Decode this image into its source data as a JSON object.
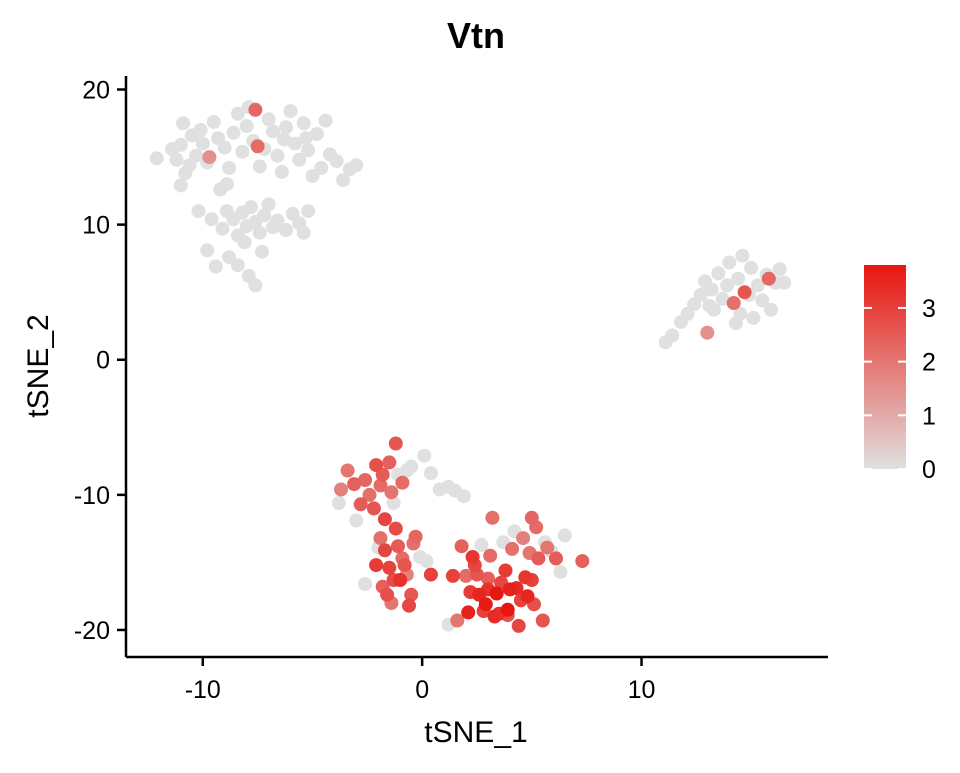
{
  "chart_data": {
    "type": "scatter",
    "title": "Vtn",
    "xlabel": "tSNE_1",
    "ylabel": "tSNE_2",
    "xlim": [
      -13.5,
      18.5
    ],
    "ylim": [
      -22,
      21
    ],
    "xticks": [
      -10,
      0,
      10
    ],
    "yticks": [
      -20,
      -10,
      0,
      10,
      20
    ],
    "xtick_labels": [
      "-10",
      "0",
      "10"
    ],
    "ytick_labels": [
      "-20",
      "-10",
      "0",
      "10",
      "20"
    ],
    "grid": false,
    "legend": {
      "position": "right",
      "type": "colorbar",
      "min": 0,
      "max": 3.8,
      "ticks": [
        0,
        1,
        2,
        3
      ],
      "tick_labels": [
        "0",
        "1",
        "2",
        "3"
      ],
      "color_low": "#E0E0E0",
      "color_high": "#E8160F"
    },
    "points": [
      [
        -12.1,
        14.9,
        0
      ],
      [
        -11.4,
        15.6,
        0
      ],
      [
        -11.2,
        14.8,
        0
      ],
      [
        -11.0,
        15.9,
        0
      ],
      [
        -10.9,
        17.5,
        0
      ],
      [
        -10.8,
        13.8,
        0
      ],
      [
        -10.6,
        14.4,
        0
      ],
      [
        -10.5,
        16.6,
        0
      ],
      [
        -10.3,
        15.1,
        0
      ],
      [
        -10.1,
        17.0,
        0
      ],
      [
        -10.0,
        16.0,
        0
      ],
      [
        -9.8,
        14.6,
        0
      ],
      [
        -9.7,
        15.0,
        1.5
      ],
      [
        -9.5,
        17.6,
        0
      ],
      [
        -9.3,
        16.4,
        0
      ],
      [
        -9.0,
        15.7,
        0
      ],
      [
        -8.8,
        14.2,
        0
      ],
      [
        -8.6,
        16.8,
        0
      ],
      [
        -8.4,
        18.2,
        0
      ],
      [
        -8.2,
        15.4,
        0
      ],
      [
        -8.0,
        17.3,
        0
      ],
      [
        -7.9,
        18.7,
        0
      ],
      [
        -7.7,
        16.2,
        0
      ],
      [
        -7.6,
        18.5,
        2.3
      ],
      [
        -7.4,
        14.3,
        0
      ],
      [
        -7.2,
        15.6,
        0
      ],
      [
        -7.0,
        17.8,
        0
      ],
      [
        -6.8,
        16.9,
        0
      ],
      [
        -6.6,
        15.1,
        0
      ],
      [
        -6.4,
        13.9,
        0
      ],
      [
        -6.2,
        17.2,
        0
      ],
      [
        -6.0,
        18.4,
        0
      ],
      [
        -5.8,
        16.0,
        0
      ],
      [
        -5.6,
        14.8,
        0
      ],
      [
        -5.4,
        17.5,
        0
      ],
      [
        -5.2,
        15.5,
        0
      ],
      [
        -5.0,
        13.6,
        0
      ],
      [
        -4.8,
        16.7,
        0
      ],
      [
        -4.6,
        14.2,
        0
      ],
      [
        -4.4,
        17.7,
        0
      ],
      [
        -4.2,
        15.2,
        0
      ],
      [
        -3.9,
        14.7,
        0
      ],
      [
        -3.6,
        13.3,
        0
      ],
      [
        -3.3,
        14.1,
        0
      ],
      [
        -3.0,
        14.4,
        0
      ],
      [
        -7.5,
        15.8,
        2.2
      ],
      [
        -6.3,
        16.3,
        0
      ],
      [
        -5.3,
        16.4,
        0
      ],
      [
        -8.9,
        13.0,
        0
      ],
      [
        -9.2,
        12.6,
        0
      ],
      [
        -11.0,
        12.9,
        0
      ],
      [
        -10.2,
        11.0,
        0
      ],
      [
        -9.6,
        10.4,
        0
      ],
      [
        -9.1,
        9.7,
        0
      ],
      [
        -8.9,
        11.0,
        0
      ],
      [
        -8.6,
        10.4,
        0
      ],
      [
        -8.4,
        9.2,
        0
      ],
      [
        -8.2,
        10.9,
        0
      ],
      [
        -8.0,
        9.9,
        0
      ],
      [
        -7.8,
        11.3,
        0
      ],
      [
        -7.6,
        10.2,
        0
      ],
      [
        -7.4,
        9.4,
        0
      ],
      [
        -7.2,
        10.7,
        0
      ],
      [
        -7.0,
        11.5,
        0
      ],
      [
        -6.8,
        9.8,
        0
      ],
      [
        -6.6,
        10.3,
        0
      ],
      [
        -6.2,
        9.6,
        0
      ],
      [
        -5.9,
        10.8,
        0
      ],
      [
        -5.6,
        10.1,
        0
      ],
      [
        -5.4,
        9.4,
        0
      ],
      [
        -5.2,
        11.0,
        0
      ],
      [
        -9.8,
        8.1,
        0
      ],
      [
        -9.4,
        6.9,
        0
      ],
      [
        -8.8,
        7.6,
        0
      ],
      [
        -8.4,
        7.0,
        0
      ],
      [
        -7.9,
        6.2,
        0
      ],
      [
        -7.6,
        5.5,
        0
      ],
      [
        -8.1,
        8.7,
        0
      ],
      [
        -7.3,
        8.0,
        0
      ],
      [
        11.1,
        1.3,
        0
      ],
      [
        11.4,
        1.8,
        0
      ],
      [
        11.8,
        2.8,
        0
      ],
      [
        12.1,
        3.4,
        0
      ],
      [
        12.4,
        4.1,
        0
      ],
      [
        12.7,
        4.8,
        0
      ],
      [
        12.9,
        5.8,
        0
      ],
      [
        13.0,
        2.0,
        1.5
      ],
      [
        13.2,
        5.2,
        0
      ],
      [
        13.3,
        3.7,
        0
      ],
      [
        13.5,
        6.4,
        0
      ],
      [
        13.7,
        4.5,
        0
      ],
      [
        13.9,
        5.5,
        0
      ],
      [
        14.0,
        7.2,
        0
      ],
      [
        14.2,
        4.2,
        2.1
      ],
      [
        14.4,
        6.0,
        0
      ],
      [
        14.5,
        3.4,
        0
      ],
      [
        14.7,
        5.0,
        2.6
      ],
      [
        14.9,
        4.8,
        0
      ],
      [
        15.0,
        6.8,
        0
      ],
      [
        15.1,
        3.1,
        0
      ],
      [
        15.3,
        5.5,
        0
      ],
      [
        15.5,
        4.4,
        0
      ],
      [
        15.7,
        6.3,
        0
      ],
      [
        15.9,
        3.7,
        0
      ],
      [
        16.1,
        5.7,
        0
      ],
      [
        16.3,
        6.7,
        0
      ],
      [
        16.5,
        5.7,
        0
      ],
      [
        15.8,
        6.0,
        2.3
      ],
      [
        14.6,
        7.7,
        0
      ],
      [
        13.1,
        4.0,
        0
      ],
      [
        14.3,
        2.7,
        0
      ],
      [
        -3.8,
        -10.6,
        0
      ],
      [
        -3.7,
        -9.6,
        1.8
      ],
      [
        -3.4,
        -8.2,
        2.0
      ],
      [
        -3.1,
        -9.2,
        2.4
      ],
      [
        -3.0,
        -11.9,
        0
      ],
      [
        -2.8,
        -10.7,
        2.5
      ],
      [
        -2.6,
        -8.9,
        2.3
      ],
      [
        -2.4,
        -10.0,
        2.1
      ],
      [
        -2.2,
        -11.0,
        2.6
      ],
      [
        -2.1,
        -7.8,
        2.7
      ],
      [
        -1.9,
        -9.3,
        2.2
      ],
      [
        -1.8,
        -8.5,
        2.5
      ],
      [
        -1.7,
        -11.8,
        2.9
      ],
      [
        -1.5,
        -7.6,
        2.4
      ],
      [
        -1.4,
        -9.8,
        2.0
      ],
      [
        -1.3,
        -10.6,
        0
      ],
      [
        -1.2,
        -6.2,
        2.6
      ],
      [
        -1.1,
        -8.5,
        0
      ],
      [
        -0.9,
        -9.1,
        2.2
      ],
      [
        -0.7,
        -8.2,
        0
      ],
      [
        -0.5,
        -7.9,
        0
      ],
      [
        -1.9,
        -13.2,
        2.1
      ],
      [
        -1.7,
        -14.1,
        2.9
      ],
      [
        -1.5,
        -15.4,
        3.0
      ],
      [
        -1.3,
        -16.3,
        2.8
      ],
      [
        -1.1,
        -13.8,
        2.5
      ],
      [
        -0.9,
        -14.7,
        2.2
      ],
      [
        -0.7,
        -15.9,
        1.8
      ],
      [
        -0.5,
        -17.4,
        2.6
      ],
      [
        -1.8,
        -16.8,
        2.4
      ],
      [
        -2.1,
        -15.2,
        3.1
      ],
      [
        -1.2,
        -12.5,
        2.8
      ],
      [
        -0.3,
        -13.1,
        2.3
      ],
      [
        -0.1,
        -14.6,
        0
      ],
      [
        0.2,
        -14.9,
        0
      ],
      [
        0.4,
        -15.9,
        3.0
      ],
      [
        -2.6,
        -16.6,
        0
      ],
      [
        -1.6,
        -17.4,
        2.7
      ],
      [
        -1.4,
        -18.0,
        2.0
      ],
      [
        -0.6,
        -18.2,
        2.9
      ],
      [
        -1.0,
        -16.3,
        3.3
      ],
      [
        -2.0,
        -13.9,
        0
      ],
      [
        -0.8,
        -15.2,
        2.6
      ],
      [
        -0.4,
        -13.6,
        2.1
      ],
      [
        0.1,
        -7.1,
        0
      ],
      [
        0.4,
        -8.4,
        0
      ],
      [
        0.8,
        -9.6,
        0
      ],
      [
        1.2,
        -9.4,
        0
      ],
      [
        1.5,
        -9.7,
        0
      ],
      [
        1.9,
        -10.1,
        0
      ],
      [
        1.8,
        -13.8,
        2.4
      ],
      [
        2.0,
        -16.0,
        2.2
      ],
      [
        2.3,
        -14.6,
        3.2
      ],
      [
        2.5,
        -15.9,
        2.6
      ],
      [
        2.6,
        -17.4,
        3.5
      ],
      [
        2.8,
        -18.6,
        3.0
      ],
      [
        3.0,
        -16.2,
        2.4
      ],
      [
        3.1,
        -14.5,
        2.2
      ],
      [
        3.2,
        -11.7,
        2.1
      ],
      [
        3.4,
        -17.3,
        3.8
      ],
      [
        3.5,
        -18.8,
        3.3
      ],
      [
        3.6,
        -16.5,
        2.9
      ],
      [
        3.8,
        -15.6,
        3.1
      ],
      [
        3.9,
        -18.9,
        2.7
      ],
      [
        4.0,
        -17.0,
        3.6
      ],
      [
        4.1,
        -14.0,
        2.1
      ],
      [
        4.3,
        -16.9,
        3.4
      ],
      [
        4.4,
        -19.7,
        2.9
      ],
      [
        4.5,
        -17.8,
        3.0
      ],
      [
        4.7,
        -16.1,
        3.2
      ],
      [
        4.9,
        -14.3,
        2.0
      ],
      [
        5.0,
        -11.7,
        2.3
      ],
      [
        5.1,
        -18.1,
        2.7
      ],
      [
        5.2,
        -12.4,
        2.2
      ],
      [
        5.3,
        -14.7,
        2.5
      ],
      [
        5.5,
        -19.3,
        2.6
      ],
      [
        5.7,
        -13.9,
        2.0
      ],
      [
        5.9,
        -14.2,
        0
      ],
      [
        6.1,
        -14.7,
        2.5
      ],
      [
        6.3,
        -15.7,
        0
      ],
      [
        6.5,
        -13.0,
        0
      ],
      [
        7.3,
        -14.9,
        2.4
      ],
      [
        1.2,
        -19.6,
        0
      ],
      [
        1.6,
        -19.3,
        2.0
      ],
      [
        2.1,
        -18.7,
        3.6
      ],
      [
        2.9,
        -18.1,
        3.7
      ],
      [
        3.3,
        -19.0,
        3.4
      ],
      [
        4.2,
        -12.7,
        0
      ],
      [
        3.7,
        -13.5,
        0
      ],
      [
        2.7,
        -13.7,
        0
      ],
      [
        1.4,
        -16.0,
        3.0
      ],
      [
        2.2,
        -17.2,
        3.1
      ],
      [
        4.6,
        -13.2,
        1.8
      ],
      [
        5.6,
        -13.5,
        0
      ],
      [
        2.4,
        -15.2,
        2.9
      ],
      [
        4.8,
        -17.5,
        3.5
      ],
      [
        3.9,
        -18.5,
        3.8
      ],
      [
        3.0,
        -17.0,
        3.3
      ],
      [
        5.0,
        -16.3,
        3.0
      ]
    ]
  }
}
